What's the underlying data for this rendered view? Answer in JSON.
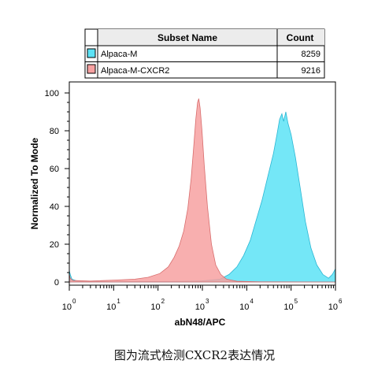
{
  "legend_table": {
    "headers": [
      "Subset Name",
      "Count"
    ],
    "rows": [
      {
        "name": "Alpaca-M",
        "count": "8259",
        "color": "#5ce3f6"
      },
      {
        "name": "Alpaca-M-CXCR2",
        "count": "9216",
        "color": "#f7a1a1"
      }
    ]
  },
  "caption": "图为流式检测CXCR2表达情况",
  "chart_data": {
    "type": "area",
    "xlabel": "abN48/APC",
    "ylabel": "Normalized To Mode",
    "x_scale": "log",
    "xlim": [
      1,
      1000000
    ],
    "ylim": [
      0,
      105
    ],
    "x_tick_labels": [
      {
        "base": "10",
        "exp": "0"
      },
      {
        "base": "10",
        "exp": "1"
      },
      {
        "base": "10",
        "exp": "2"
      },
      {
        "base": "10",
        "exp": "3"
      },
      {
        "base": "10",
        "exp": "4"
      },
      {
        "base": "10",
        "exp": "5"
      },
      {
        "base": "10",
        "exp": "6"
      }
    ],
    "y_ticks": [
      0,
      20,
      40,
      60,
      80,
      100
    ],
    "legend": "top, table above plot",
    "series": [
      {
        "name": "Alpaca-M",
        "color": "#5ce3f6",
        "stroke": "#2ab6d3",
        "points": [
          [
            1.0,
            6
          ],
          [
            1.05,
            4
          ],
          [
            1.15,
            1.5
          ],
          [
            1.5,
            0.5
          ],
          [
            10,
            0.2
          ],
          [
            200,
            0.3
          ],
          [
            1000,
            0.6
          ],
          [
            2500,
            1.5
          ],
          [
            4000,
            4
          ],
          [
            6000,
            8
          ],
          [
            8500,
            14
          ],
          [
            12000,
            22
          ],
          [
            16000,
            32
          ],
          [
            22000,
            43
          ],
          [
            30000,
            56
          ],
          [
            40000,
            68
          ],
          [
            48000,
            78
          ],
          [
            55000,
            86
          ],
          [
            62000,
            89
          ],
          [
            68000,
            85
          ],
          [
            76000,
            90
          ],
          [
            85000,
            84
          ],
          [
            100000,
            78
          ],
          [
            125000,
            66
          ],
          [
            160000,
            50
          ],
          [
            210000,
            32
          ],
          [
            280000,
            18
          ],
          [
            380000,
            9
          ],
          [
            520000,
            4
          ],
          [
            700000,
            2
          ],
          [
            850000,
            4
          ],
          [
            1000000,
            7
          ]
        ]
      },
      {
        "name": "Alpaca-M-CXCR2",
        "color": "#f7a1a1",
        "stroke": "#d86c6c",
        "points": [
          [
            1.0,
            4
          ],
          [
            1.05,
            2
          ],
          [
            1.2,
            0.8
          ],
          [
            3,
            0.5
          ],
          [
            10,
            1
          ],
          [
            30,
            1.5
          ],
          [
            60,
            2.5
          ],
          [
            110,
            4.5
          ],
          [
            170,
            8
          ],
          [
            230,
            13
          ],
          [
            300,
            19
          ],
          [
            380,
            27
          ],
          [
            470,
            39
          ],
          [
            560,
            55
          ],
          [
            640,
            72
          ],
          [
            710,
            86
          ],
          [
            780,
            95
          ],
          [
            830,
            97
          ],
          [
            890,
            92
          ],
          [
            980,
            80
          ],
          [
            1100,
            62
          ],
          [
            1300,
            40
          ],
          [
            1600,
            20
          ],
          [
            2000,
            9
          ],
          [
            2600,
            4
          ],
          [
            3500,
            1.5
          ],
          [
            6000,
            0.4
          ],
          [
            20000,
            0.1
          ],
          [
            1000000,
            0
          ]
        ]
      }
    ]
  }
}
